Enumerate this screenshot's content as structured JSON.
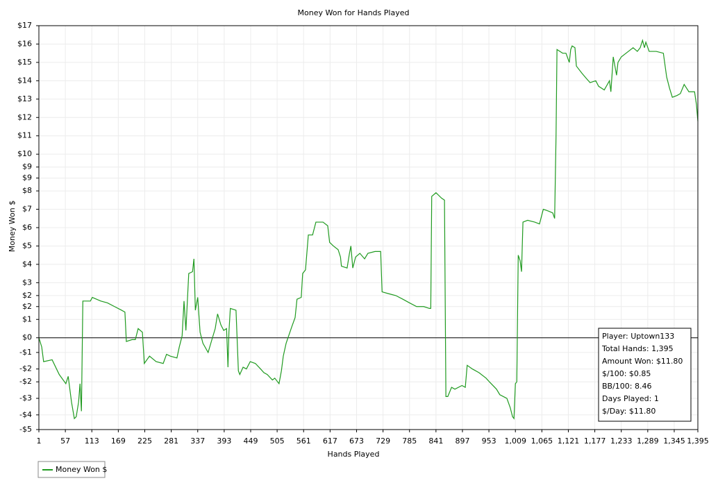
{
  "chart_data": {
    "type": "line",
    "title": "Money Won for Hands Played",
    "x_label": "Hands Played",
    "y_label": "Money Won $",
    "legend": "bottom-left",
    "grid": true,
    "xlim": [
      1,
      1395
    ],
    "ylim": [
      -5,
      17
    ],
    "xticks": [
      1,
      57,
      113,
      169,
      225,
      281,
      337,
      393,
      449,
      505,
      561,
      617,
      673,
      729,
      785,
      841,
      897,
      953,
      {
        "value": 1009,
        "label": "1,009"
      },
      {
        "value": 1065,
        "label": "1,065"
      },
      {
        "value": 1121,
        "label": "1,121"
      },
      {
        "value": 1177,
        "label": "1,177"
      },
      {
        "value": 1233,
        "label": "1,233"
      },
      {
        "value": 1289,
        "label": "1,289"
      },
      {
        "value": 1345,
        "label": "1,345"
      },
      {
        "value": 1395,
        "label": "1,395"
      }
    ],
    "yticks": [
      {
        "value": 17,
        "label": "$17"
      },
      {
        "value": 16,
        "label": "$16"
      },
      {
        "value": 15,
        "label": "$15"
      },
      {
        "value": 14,
        "label": "$14"
      },
      {
        "value": 13,
        "label": "$13"
      },
      {
        "value": 12,
        "label": "$12"
      },
      {
        "value": 11,
        "label": "$11"
      },
      {
        "value": 10,
        "label": "$10"
      },
      {
        "value": 9.3,
        "label": "$9"
      },
      {
        "value": 8.7,
        "label": "$9"
      },
      {
        "value": 8,
        "label": "$8"
      },
      {
        "value": 7,
        "label": "$7"
      },
      {
        "value": 6,
        "label": "$6"
      },
      {
        "value": 5,
        "label": "$5"
      },
      {
        "value": 4,
        "label": "$4"
      },
      {
        "value": 3,
        "label": "$3"
      },
      {
        "value": 2.3,
        "label": "$2"
      },
      {
        "value": 1.7,
        "label": "$2"
      },
      {
        "value": 1,
        "label": "$1"
      },
      {
        "value": 0,
        "label": "$0"
      },
      {
        "value": -0.8,
        "label": "-$1"
      },
      {
        "value": -1.7,
        "label": "-$2"
      },
      {
        "value": -2.4,
        "label": "-$2"
      },
      {
        "value": -3.3,
        "label": "-$3"
      },
      {
        "value": -4.2,
        "label": "-$4"
      },
      {
        "value": -5,
        "label": "-$5"
      }
    ],
    "series": [
      {
        "name": "Money Won $",
        "color": "#1f9a1f",
        "x": [
          1,
          7,
          11,
          29,
          44,
          58,
          63,
          70,
          76,
          80,
          85,
          88,
          91,
          94,
          110,
          114,
          132,
          146,
          161,
          176,
          183,
          186,
          198,
          205,
          211,
          220,
          224,
          235,
          249,
          264,
          271,
          279,
          293,
          298,
          304,
          308,
          312,
          318,
          326,
          329,
          332,
          337,
          342,
          348,
          359,
          367,
          374,
          379,
          386,
          392,
          398,
          401,
          403,
          406,
          418,
          423,
          426,
          433,
          440,
          448,
          459,
          470,
          477,
          484,
          495,
          500,
          509,
          514,
          518,
          524,
          528,
          536,
          543,
          547,
          556,
          559,
          565,
          571,
          580,
          587,
          602,
          612,
          616,
          624,
          634,
          639,
          641,
          653,
          658,
          661,
          665,
          671,
          680,
          690,
          697,
          712,
          724,
          727,
          741,
          756,
          771,
          785,
          800,
          815,
          827,
          830,
          832,
          841,
          853,
          859,
          862,
          866,
          874,
          881,
          896,
          903,
          907,
          918,
          932,
          947,
          954,
          969,
          976,
          991,
          998,
          1003,
          1006,
          1009,
          1012,
          1015,
          1019,
          1022,
          1025,
          1035,
          1050,
          1060,
          1068,
          1079,
          1088,
          1092,
          1095,
          1097,
          1109,
          1116,
          1123,
          1126,
          1129,
          1135,
          1138,
          1150,
          1160,
          1167,
          1179,
          1185,
          1197,
          1208,
          1211,
          1216,
          1223,
          1226,
          1233,
          1248,
          1258,
          1267,
          1273,
          1278,
          1282,
          1285,
          1292,
          1307,
          1322,
          1329,
          1335,
          1341,
          1351,
          1358,
          1366,
          1376,
          1388,
          1392,
          1395
        ],
        "values": [
          0,
          -0.5,
          -1.3,
          -1.2,
          -2,
          -2.5,
          -2.1,
          -3.5,
          -4.4,
          -4.3,
          -3.5,
          -2.5,
          -4,
          2,
          2,
          2.2,
          2,
          1.9,
          1.7,
          1.5,
          1.4,
          -0.2,
          -0.1,
          -0.1,
          0.5,
          0.3,
          -1.4,
          -1,
          -1.3,
          -1.4,
          -0.9,
          -1,
          -1.1,
          -0.5,
          0.1,
          2,
          0.4,
          3.5,
          3.6,
          4.3,
          1.5,
          2.2,
          0.3,
          -0.3,
          -0.8,
          -0.1,
          0.5,
          1.3,
          0.7,
          0.4,
          0.5,
          -1.6,
          0.3,
          1.6,
          1.5,
          -1.8,
          -2,
          -1.6,
          -1.7,
          -1.3,
          -1.4,
          -1.7,
          -1.9,
          -2,
          -2.3,
          -2.2,
          -2.5,
          -1.8,
          -1,
          -0.3,
          0,
          0.6,
          1.1,
          2.1,
          2.2,
          3.5,
          3.7,
          5.6,
          5.6,
          6.3,
          6.3,
          6.1,
          5.2,
          5,
          4.8,
          4.4,
          3.9,
          3.8,
          4.6,
          5,
          3.8,
          4.4,
          4.6,
          4.3,
          4.6,
          4.7,
          4.7,
          2.5,
          2.4,
          2.3,
          2.1,
          1.9,
          1.7,
          1.7,
          1.6,
          1.6,
          7.7,
          7.9,
          7.6,
          7.5,
          -3.2,
          -3.2,
          -2.7,
          -2.8,
          -2.6,
          -2.7,
          -1.5,
          -1.7,
          -1.9,
          -2.2,
          -2.4,
          -2.8,
          -3.1,
          -3.3,
          -3.8,
          -4.3,
          -4.4,
          -2.5,
          -2.4,
          4.5,
          4.2,
          3.6,
          6.3,
          6.4,
          6.3,
          6.2,
          7,
          6.9,
          6.8,
          6.5,
          11,
          15.7,
          15.5,
          15.5,
          15,
          15.7,
          15.9,
          15.8,
          14.8,
          14.4,
          14.1,
          13.9,
          14,
          13.7,
          13.5,
          14,
          13.4,
          15.3,
          14.3,
          15,
          15.3,
          15.6,
          15.8,
          15.6,
          15.8,
          16.2,
          15.8,
          16.1,
          15.6,
          15.6,
          15.5,
          14.2,
          13.6,
          13.1,
          13.2,
          13.3,
          13.8,
          13.4,
          13.4,
          12.7,
          11.8
        ]
      }
    ],
    "annotations": [
      "Player: Uptown133",
      "Total Hands: 1,395",
      "Amount Won: $11.80",
      "$/100: $0.85",
      "BB/100: 8.46",
      "Days Played: 1",
      "$/Day: $11.80"
    ]
  }
}
